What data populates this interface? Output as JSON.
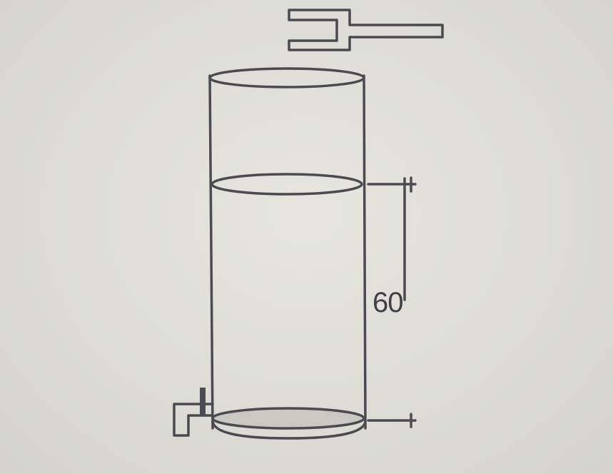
{
  "diagram": {
    "height_label": "60"
  }
}
